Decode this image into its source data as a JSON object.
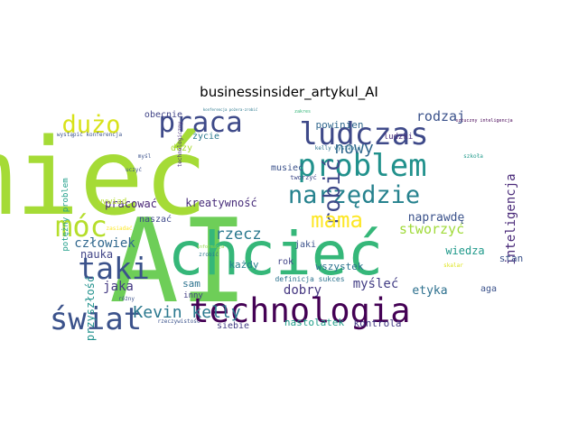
{
  "chart_data": {
    "type": "wordcloud",
    "title": "businessinsider_artykul_AI",
    "colormap": "viridis",
    "background": "#ffffff",
    "words": [
      {
        "text": "mieć",
        "weight": 1.0,
        "color": "#a5db36"
      },
      {
        "text": "AI",
        "weight": 0.98,
        "color": "#6ece58"
      },
      {
        "text": "chcieć",
        "weight": 0.72,
        "color": "#35b779"
      },
      {
        "text": "technologia",
        "weight": 0.46,
        "color": "#440154"
      },
      {
        "text": "ludczas",
        "weight": 0.4,
        "color": "#3e4989"
      },
      {
        "text": "problem",
        "weight": 0.4,
        "color": "#21918c"
      },
      {
        "text": "świat",
        "weight": 0.38,
        "color": "#3b528b"
      },
      {
        "text": "praca",
        "weight": 0.36,
        "color": "#3e4a89"
      },
      {
        "text": "móc",
        "weight": 0.36,
        "color": "#b5de2b"
      },
      {
        "text": "taki",
        "weight": 0.36,
        "color": "#3b528b"
      },
      {
        "text": "dużo",
        "weight": 0.34,
        "color": "#d8e219"
      },
      {
        "text": "narzędzie",
        "weight": 0.3,
        "color": "#26828e"
      },
      {
        "text": "robić",
        "weight": 0.3,
        "color": "#3e4989"
      },
      {
        "text": "mama",
        "weight": 0.28,
        "color": "#fde725"
      },
      {
        "text": "Kevin kelly",
        "weight": 0.22,
        "color": "#2a788e"
      },
      {
        "text": "nowy",
        "weight": 0.2,
        "color": "#31688e"
      },
      {
        "text": "rzecz",
        "weight": 0.18,
        "color": "#2a788e"
      },
      {
        "text": "inteligencja",
        "weight": 0.16,
        "color": "#482878"
      },
      {
        "text": "stworzyć",
        "weight": 0.16,
        "color": "#a0da39"
      },
      {
        "text": "rodzaj",
        "weight": 0.15,
        "color": "#3b528b"
      },
      {
        "text": "człowiek",
        "weight": 0.15,
        "color": "#31688e"
      },
      {
        "text": "dobry",
        "weight": 0.15,
        "color": "#453781"
      },
      {
        "text": "jaka",
        "weight": 0.14,
        "color": "#443983"
      },
      {
        "text": "myśleć",
        "weight": 0.14,
        "color": "#433e85"
      },
      {
        "text": "etyka",
        "weight": 0.14,
        "color": "#2d708e"
      },
      {
        "text": "naprawdę",
        "weight": 0.14,
        "color": "#3b528b"
      },
      {
        "text": "przyszłość",
        "weight": 0.13,
        "color": "#21918c"
      },
      {
        "text": "pracować",
        "weight": 0.13,
        "color": "#482576"
      },
      {
        "text": "kreatywność",
        "weight": 0.12,
        "color": "#472c7a"
      },
      {
        "text": "nauka",
        "weight": 0.12,
        "color": "#414487"
      },
      {
        "text": "wiedza",
        "weight": 0.12,
        "color": "#1f998a"
      },
      {
        "text": "kontrola",
        "weight": 0.12,
        "color": "#443983"
      },
      {
        "text": "nastolatek",
        "weight": 0.11,
        "color": "#1f9e89"
      },
      {
        "text": "wszystek",
        "weight": 0.11,
        "color": "#2c728e"
      },
      {
        "text": "stan",
        "weight": 0.11,
        "color": "#3b528b"
      },
      {
        "text": "każdy",
        "weight": 0.1,
        "color": "#27808e"
      },
      {
        "text": "sam",
        "weight": 0.1,
        "color": "#2c728e"
      },
      {
        "text": "powinien",
        "weight": 0.1,
        "color": "#31688e"
      },
      {
        "text": "siebie",
        "weight": 0.1,
        "color": "#433d84"
      },
      {
        "text": "aga",
        "weight": 0.1,
        "color": "#3b528b"
      },
      {
        "text": "jaki",
        "weight": 0.1,
        "color": "#3b528b"
      },
      {
        "text": "rok",
        "weight": 0.1,
        "color": "#414487"
      },
      {
        "text": "naszać",
        "weight": 0.1,
        "color": "#3e4989"
      },
      {
        "text": "musieć",
        "weight": 0.1,
        "color": "#3b528b"
      },
      {
        "text": "obecnie",
        "weight": 0.1,
        "color": "#414487"
      },
      {
        "text": "życie",
        "weight": 0.1,
        "color": "#2a788e"
      },
      {
        "text": "duży",
        "weight": 0.09,
        "color": "#aadc32"
      },
      {
        "text": "potężny problem",
        "weight": 0.09,
        "color": "#1f9e89"
      },
      {
        "text": "wywiad",
        "weight": 0.09,
        "color": "#b5de2b"
      },
      {
        "text": "inny",
        "weight": 0.08,
        "color": "#433e85"
      },
      {
        "text": "ludzki",
        "weight": 0.08,
        "color": "#472c7a"
      },
      {
        "text": "definicja sukces",
        "weight": 0.07,
        "color": "#2c728e"
      },
      {
        "text": "tworzyć",
        "weight": 0.06,
        "color": "#3e4989"
      },
      {
        "text": "kelly wystąpić",
        "weight": 0.06,
        "color": "#2c728e"
      },
      {
        "text": "wystąpić konferencja",
        "weight": 0.06,
        "color": "#3b528b"
      },
      {
        "text": "technologiczny",
        "weight": 0.05,
        "color": "#472c7a"
      },
      {
        "text": "uczyć",
        "weight": 0.06,
        "color": "#3b528b"
      },
      {
        "text": "myśl",
        "weight": 0.06,
        "color": "#3b528b"
      },
      {
        "text": "różny",
        "weight": 0.05,
        "color": "#3b528b"
      },
      {
        "text": "skalar",
        "weight": 0.05,
        "color": "#dde318"
      },
      {
        "text": "zrobić",
        "weight": 0.05,
        "color": "#2a788e"
      },
      {
        "text": "szkoła",
        "weight": 0.05,
        "color": "#1f998a"
      },
      {
        "text": "informacja",
        "weight": 0.05,
        "color": "#8fd744"
      },
      {
        "text": "rzeczywistość",
        "weight": 0.05,
        "color": "#3b528b"
      },
      {
        "text": "zasiadać",
        "weight": 0.04,
        "color": "#fde725"
      },
      {
        "text": "sztuczny inteligencja",
        "weight": 0.04,
        "color": "#440154"
      },
      {
        "text": "konferencja pożera-zrobić",
        "weight": 0.04,
        "color": "#2a788e"
      },
      {
        "text": "zakres",
        "weight": 0.04,
        "color": "#35b779"
      }
    ]
  }
}
